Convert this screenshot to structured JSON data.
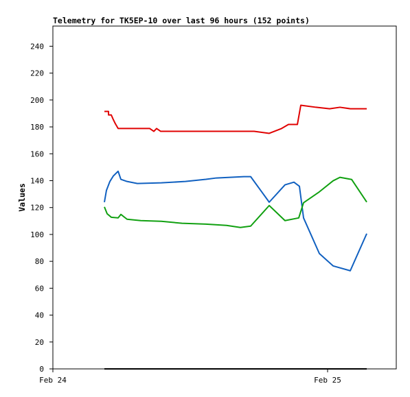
{
  "chart_data": {
    "type": "line",
    "title": "Telemetry for TK5EP-10 over last 96 hours (152 points)",
    "y_label": "Values",
    "xlim": [
      0,
      30
    ],
    "xticks": [
      {
        "value": 0,
        "label": "Feb 24"
      },
      {
        "value": 24,
        "label": "Feb 25"
      }
    ],
    "ylim": [
      0,
      255
    ],
    "yticks": [
      0,
      20,
      40,
      60,
      80,
      100,
      120,
      140,
      160,
      180,
      200,
      220,
      240
    ],
    "grid": false,
    "series": [
      {
        "color": "#e00000",
        "x": [
          4.5,
          4.86,
          4.86,
          5.1,
          5.28,
          5.46,
          5.7,
          8.46,
          8.82,
          9.06,
          9.42,
          13.38,
          17.58,
          18.9,
          19.98,
          20.58,
          21.36,
          21.66,
          22.98,
          24.18,
          25.08,
          25.98,
          27.42
        ],
        "values": [
          191.5,
          191.5,
          188.9,
          188.9,
          185.4,
          182.3,
          178.8,
          178.8,
          176.7,
          178.8,
          176.7,
          176.7,
          176.7,
          175.2,
          178.8,
          181.8,
          181.8,
          196.1,
          194.6,
          193.5,
          194.6,
          193.5,
          193.5
        ]
      },
      {
        "color": "#1060c0",
        "x": [
          4.5,
          4.68,
          4.98,
          5.28,
          5.7,
          5.94,
          6.48,
          7.38,
          9.48,
          11.58,
          13.38,
          14.28,
          16.68,
          17.28,
          18.9,
          20.28,
          21.06,
          21.54,
          21.9,
          23.28,
          24.48,
          25.98,
          27.42
        ],
        "values": [
          124,
          132.8,
          139.4,
          143.5,
          147,
          141,
          139.4,
          137.9,
          138.4,
          139.4,
          141,
          142,
          143,
          143,
          124,
          136.9,
          138.9,
          135.8,
          112.3,
          85.8,
          76.6,
          73,
          100.6
        ]
      },
      {
        "color": "#10a010",
        "x": [
          4.5,
          4.74,
          5.1,
          5.7,
          5.94,
          6.48,
          7.68,
          9.48,
          11.28,
          13.38,
          15.18,
          16.38,
          17.28,
          18.9,
          20.28,
          21.48,
          21.9,
          23.28,
          24.48,
          25.08,
          26.1,
          27.42
        ],
        "values": [
          120.5,
          115.4,
          112.8,
          112.3,
          114.9,
          111.3,
          110.3,
          109.8,
          108.3,
          107.7,
          106.7,
          105.2,
          106.2,
          121.5,
          110.3,
          112.3,
          123.6,
          131.7,
          139.9,
          142.5,
          140.9,
          124.1
        ]
      },
      {
        "color": "#000000",
        "x": [
          4.5,
          27.42
        ],
        "values": [
          0,
          0
        ]
      }
    ]
  }
}
